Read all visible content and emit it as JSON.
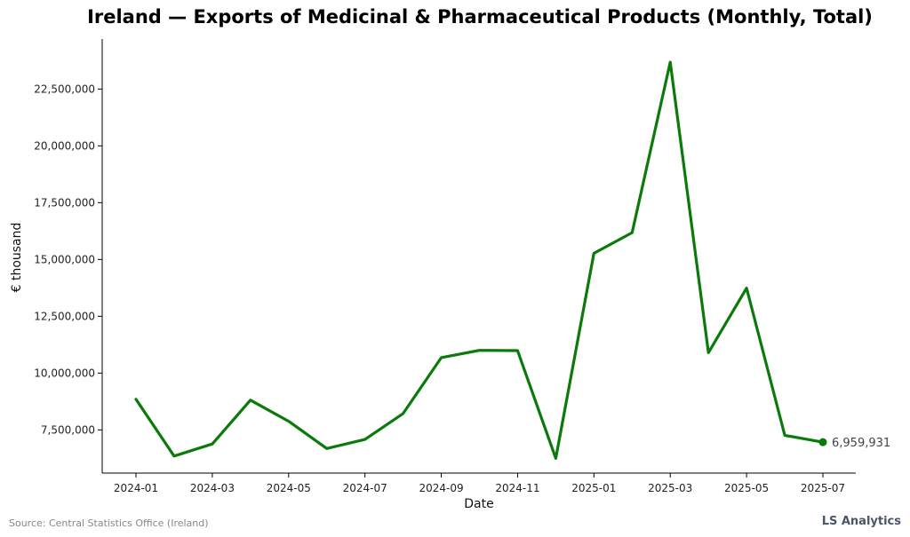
{
  "chart_data": {
    "type": "line",
    "title": "Ireland — Exports of Medicinal & Pharmaceutical Products (Monthly, Total)",
    "xlabel": "Date",
    "ylabel": "€ thousand",
    "x": [
      "2024-01",
      "2024-02",
      "2024-03",
      "2024-04",
      "2024-05",
      "2024-06",
      "2024-07",
      "2024-08",
      "2024-09",
      "2024-10",
      "2024-11",
      "2024-12",
      "2025-01",
      "2025-02",
      "2025-03",
      "2025-04",
      "2025-05",
      "2025-06",
      "2025-07"
    ],
    "x_ticks": [
      "2024-01",
      "2024-03",
      "2024-05",
      "2024-07",
      "2024-09",
      "2024-11",
      "2025-01",
      "2025-03",
      "2025-05",
      "2025-07"
    ],
    "y_ticks": [
      7500000,
      10000000,
      12500000,
      15000000,
      17500000,
      20000000,
      22500000
    ],
    "y_tick_labels": [
      "7,500,000",
      "10,000,000",
      "12,500,000",
      "15,000,000",
      "17,500,000",
      "20,000,000",
      "22,500,000"
    ],
    "ylim": [
      5600000,
      24700000
    ],
    "series": [
      {
        "values": [
          8850000,
          6350000,
          6880000,
          8810000,
          7880000,
          6680000,
          7080000,
          8220000,
          10680000,
          11000000,
          10990000,
          6250000,
          15270000,
          16180000,
          23680000,
          10900000,
          13740000,
          7260000,
          6959931
        ],
        "color": "#0a7a0a"
      }
    ],
    "end_label": "6,959,931",
    "grid": false
  },
  "footer": {
    "source": "Source: Central Statistics Office (Ireland)",
    "brand": "LS Analytics"
  }
}
